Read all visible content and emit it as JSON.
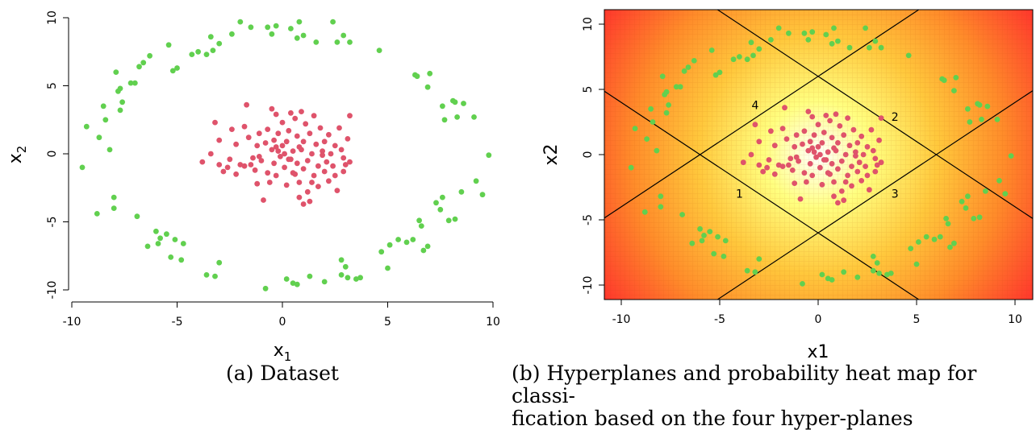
{
  "chart_data": [
    {
      "type": "scatter",
      "title": "",
      "xlabel": "x",
      "xlabel_sub": "1",
      "ylabel": "x",
      "ylabel_sub": "2",
      "xlim": [
        -10,
        10
      ],
      "ylim": [
        -10,
        10
      ],
      "xticks": [
        "-10",
        "-5",
        "0",
        "5",
        "10"
      ],
      "yticks": [
        "-10",
        "-5",
        "0",
        "5",
        "10"
      ],
      "grid": false,
      "series": [
        {
          "color": "#61D04F",
          "points": [
            [
              -9.5,
              -1
            ],
            [
              -9.3,
              2
            ],
            [
              -8.8,
              -4.4
            ],
            [
              -8.7,
              1.2
            ],
            [
              -8.4,
              2.5
            ],
            [
              -8.5,
              3.5
            ],
            [
              -8.2,
              0.3
            ],
            [
              -8,
              -3.2
            ],
            [
              -8,
              -4
            ],
            [
              -7.8,
              4.6
            ],
            [
              -7.9,
              6
            ],
            [
              -7.7,
              3.2
            ],
            [
              -7.6,
              3.8
            ],
            [
              -7.7,
              4.8
            ],
            [
              -7.2,
              5.2
            ],
            [
              -7,
              5.2
            ],
            [
              -6.9,
              -4.6
            ],
            [
              -6.8,
              6.4
            ],
            [
              -6.6,
              6.7
            ],
            [
              -6.4,
              -6.8
            ],
            [
              -6.3,
              7.2
            ],
            [
              -6,
              -5.7
            ],
            [
              -5.9,
              -6.6
            ],
            [
              -5.8,
              -6.2
            ],
            [
              -5.5,
              -5.9
            ],
            [
              -5.4,
              8
            ],
            [
              -5.3,
              -7.6
            ],
            [
              -5.2,
              6.1
            ],
            [
              -5.1,
              -6.3
            ],
            [
              -5,
              6.3
            ],
            [
              -4.8,
              -7.8
            ],
            [
              -4.7,
              -6.6
            ],
            [
              -4.3,
              7.3
            ],
            [
              -4,
              7.5
            ],
            [
              -3.6,
              -8.9
            ],
            [
              -3.6,
              7.3
            ],
            [
              -3.4,
              8.6
            ],
            [
              -3.3,
              7.6
            ],
            [
              -3.2,
              -9
            ],
            [
              -3,
              -8
            ],
            [
              -3,
              8.1
            ],
            [
              -2.4,
              8.8
            ],
            [
              -2,
              9.7
            ],
            [
              -1.5,
              9.3
            ],
            [
              -0.8,
              -9.9
            ],
            [
              -0.7,
              9.3
            ],
            [
              -0.5,
              8.8
            ],
            [
              -0.3,
              9.4
            ],
            [
              0.2,
              -9.2
            ],
            [
              0.5,
              -9.5
            ],
            [
              0.4,
              9.2
            ],
            [
              0.7,
              8.5
            ],
            [
              0.7,
              -9.6
            ],
            [
              0.8,
              9.7
            ],
            [
              1,
              8.7
            ],
            [
              1.3,
              -9
            ],
            [
              1.6,
              8.2
            ],
            [
              2,
              -9.4
            ],
            [
              2.4,
              9.7
            ],
            [
              2.6,
              8.2
            ],
            [
              2.8,
              -7.8
            ],
            [
              2.8,
              -8.9
            ],
            [
              2.9,
              8.7
            ],
            [
              3,
              -8.3
            ],
            [
              3.1,
              -9.1
            ],
            [
              3.2,
              8.2
            ],
            [
              3.5,
              -9.2
            ],
            [
              3.7,
              -9.1
            ],
            [
              4.6,
              7.6
            ],
            [
              5,
              -8.4
            ],
            [
              4.7,
              -7.2
            ],
            [
              5.1,
              -6.7
            ],
            [
              5.5,
              -6.3
            ],
            [
              5.9,
              -6.5
            ],
            [
              6.2,
              -6.3
            ],
            [
              6.3,
              5.8
            ],
            [
              6.4,
              5.7
            ],
            [
              6.5,
              -4.9
            ],
            [
              6.6,
              -5.3
            ],
            [
              6.7,
              -7.1
            ],
            [
              6.9,
              -6.8
            ],
            [
              6.9,
              4.9
            ],
            [
              7,
              5.9
            ],
            [
              7.3,
              -3.6
            ],
            [
              7.5,
              -4.1
            ],
            [
              7.6,
              3.5
            ],
            [
              7.6,
              -3.2
            ],
            [
              7.7,
              2.5
            ],
            [
              7.9,
              -4.9
            ],
            [
              8.1,
              3.9
            ],
            [
              8.2,
              3.8
            ],
            [
              8.2,
              -4.8
            ],
            [
              8.3,
              2.7
            ],
            [
              8.5,
              -2.8
            ],
            [
              8.6,
              3.7
            ],
            [
              9.1,
              2.7
            ],
            [
              9.2,
              -2
            ],
            [
              9.5,
              -3
            ],
            [
              9.8,
              -0.1
            ]
          ]
        },
        {
          "color": "#DF536B",
          "points": [
            [
              -3.8,
              -0.6
            ],
            [
              -3.4,
              0
            ],
            [
              -3.2,
              2.3
            ],
            [
              -3,
              -0.8
            ],
            [
              -3,
              1
            ],
            [
              -2.8,
              -1.3
            ],
            [
              -2.6,
              -1
            ],
            [
              -2.5,
              -0.4
            ],
            [
              -2.4,
              1.8
            ],
            [
              -2.2,
              -1.5
            ],
            [
              -2.2,
              0.7
            ],
            [
              -2,
              -0.8
            ],
            [
              -1.8,
              2
            ],
            [
              -1.7,
              3.6
            ],
            [
              -1.6,
              1.2
            ],
            [
              -1.5,
              -0.8
            ],
            [
              -1.4,
              -0.3
            ],
            [
              -1.3,
              -1.2
            ],
            [
              -1.2,
              -2.2
            ],
            [
              -1.2,
              0.6
            ],
            [
              -1.1,
              1.5
            ],
            [
              -1,
              -0.5
            ],
            [
              -0.9,
              -3.4
            ],
            [
              -0.8,
              0.8
            ],
            [
              -0.7,
              -1.4
            ],
            [
              -0.7,
              1.8
            ],
            [
              -0.6,
              -2.1
            ],
            [
              -0.5,
              0.3
            ],
            [
              -0.5,
              3.3
            ],
            [
              -0.4,
              -0.7
            ],
            [
              -0.4,
              1
            ],
            [
              -0.3,
              2.9
            ],
            [
              -0.3,
              -1.6
            ],
            [
              -0.2,
              0.2
            ],
            [
              -0.2,
              1.5
            ],
            [
              -0.1,
              -0.2
            ],
            [
              0,
              0.6
            ],
            [
              0,
              2.3
            ],
            [
              0.1,
              -1
            ],
            [
              0.1,
              0
            ],
            [
              0.2,
              0.9
            ],
            [
              0.2,
              -2.3
            ],
            [
              0.3,
              1.7
            ],
            [
              0.4,
              -0.4
            ],
            [
              0.4,
              3
            ],
            [
              0.5,
              0.2
            ],
            [
              0.5,
              -1.4
            ],
            [
              0.6,
              2.6
            ],
            [
              0.7,
              -0.7
            ],
            [
              0.7,
              1.3
            ],
            [
              0.8,
              -3.2
            ],
            [
              0.8,
              -2.1
            ],
            [
              0.9,
              0.3
            ],
            [
              0.9,
              3.1
            ],
            [
              1,
              -1.1
            ],
            [
              1,
              0.9
            ],
            [
              1,
              -3.7
            ],
            [
              1.1,
              2.2
            ],
            [
              1.2,
              -0.5
            ],
            [
              1.2,
              -2.8
            ],
            [
              1.3,
              1.5
            ],
            [
              1.3,
              -3.5
            ],
            [
              1.4,
              0
            ],
            [
              1.5,
              -1.6
            ],
            [
              1.5,
              2.8
            ],
            [
              1.6,
              0.7
            ],
            [
              1.7,
              -0.9
            ],
            [
              1.7,
              -2.4
            ],
            [
              1.8,
              1.9
            ],
            [
              1.9,
              0.2
            ],
            [
              2,
              -1.3
            ],
            [
              2,
              0.9
            ],
            [
              2.1,
              -0.6
            ],
            [
              2.2,
              -2
            ],
            [
              2.2,
              1.4
            ],
            [
              2.3,
              0
            ],
            [
              2.4,
              -0.9
            ],
            [
              2.5,
              0.6
            ],
            [
              2.5,
              -1.6
            ],
            [
              2.6,
              -2.7
            ],
            [
              2.7,
              1.9
            ],
            [
              2.8,
              0.3
            ],
            [
              2.9,
              -0.3
            ],
            [
              2.9,
              -1.3
            ],
            [
              3,
              -0.8
            ],
            [
              3.1,
              1.1
            ],
            [
              3.2,
              -0.6
            ],
            [
              3.2,
              2.8
            ],
            [
              -1.8,
              -0.9
            ],
            [
              -1.1,
              -0.2
            ],
            [
              0.3,
              -0.4
            ],
            [
              0.6,
              -1.5
            ],
            [
              1.9,
              -0.1
            ],
            [
              -0.3,
              0.5
            ],
            [
              0.8,
              0.5
            ],
            [
              1.4,
              -2.1
            ]
          ]
        }
      ]
    },
    {
      "type": "scatter",
      "title": "",
      "xlabel": "x1",
      "ylabel": "x2",
      "xlim": [
        -10,
        10
      ],
      "ylim": [
        -10,
        10
      ],
      "xticks": [
        "-10",
        "-5",
        "0",
        "5",
        "10"
      ],
      "yticks": [
        "-10",
        "-5",
        "0",
        "5",
        "10"
      ],
      "background": "probability heat map",
      "lines": [
        {
          "label": "1",
          "x1": -12,
          "y1": -6,
          "x2": 12,
          "y2": 18
        },
        {
          "label": "2",
          "x1": -12,
          "y1": 18,
          "x2": 12,
          "y2": -6
        },
        {
          "label": "3",
          "x1": -12,
          "y1": -18,
          "x2": 12,
          "y2": 6
        },
        {
          "label": "4",
          "x1": -12,
          "y1": 6,
          "x2": 12,
          "y2": -18
        }
      ],
      "line_labels": [
        {
          "text": "1",
          "x": -4,
          "y": -3
        },
        {
          "text": "2",
          "x": 3.9,
          "y": 2.9
        },
        {
          "text": "3",
          "x": 3.9,
          "y": -3
        },
        {
          "text": "4",
          "x": -3.2,
          "y": 3.8
        }
      ]
    }
  ],
  "captions": {
    "a": "(a) Dataset",
    "b": "(b) Hyperplanes and probability heat map for classi-fication based on the four hyper-planes",
    "b_line1": "(b) Hyperplanes and probability heat map for classi-",
    "b_line2": "fication based on the four hyper-planes"
  }
}
